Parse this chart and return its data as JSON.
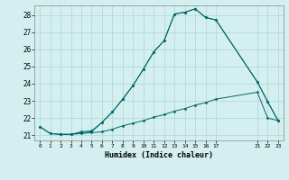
{
  "xlabel": "Humidex (Indice chaleur)",
  "background_color": "#d4efef",
  "grid_color": "#b8d8d8",
  "line_color": "#006868",
  "xlim": [
    -0.5,
    23.5
  ],
  "ylim": [
    20.7,
    28.55
  ],
  "xticks": [
    0,
    1,
    2,
    3,
    4,
    5,
    6,
    7,
    8,
    9,
    10,
    11,
    12,
    13,
    14,
    15,
    16,
    17,
    21,
    22,
    23
  ],
  "yticks": [
    21,
    22,
    23,
    24,
    25,
    26,
    27,
    28
  ],
  "line1_x": [
    0,
    1,
    2,
    3,
    4,
    5,
    6,
    7,
    8,
    9,
    10,
    11,
    12,
    13,
    14,
    15,
    16,
    17,
    21,
    22,
    23
  ],
  "line1_y": [
    21.5,
    21.1,
    21.05,
    21.05,
    21.1,
    21.15,
    21.2,
    21.35,
    21.55,
    21.7,
    21.85,
    22.05,
    22.2,
    22.4,
    22.55,
    22.75,
    22.9,
    23.1,
    23.5,
    22.0,
    21.85
  ],
  "line2_x": [
    2,
    3,
    4,
    5,
    6,
    7,
    8,
    9,
    10,
    11,
    12,
    13,
    14,
    15,
    16,
    17,
    21,
    22,
    23
  ],
  "line2_y": [
    21.05,
    21.05,
    21.2,
    21.25,
    21.75,
    22.35,
    23.1,
    23.9,
    24.85,
    25.85,
    26.5,
    28.05,
    28.15,
    28.35,
    27.85,
    27.7,
    24.1,
    22.95,
    21.85
  ],
  "line3_x": [
    0,
    1,
    2,
    3,
    4,
    5,
    6,
    7,
    8,
    9,
    10,
    11,
    12,
    13,
    14,
    15,
    16,
    17,
    21,
    22,
    23
  ],
  "line3_y": [
    21.5,
    21.1,
    21.05,
    21.05,
    21.15,
    21.2,
    21.75,
    22.35,
    23.1,
    23.9,
    24.85,
    25.85,
    26.5,
    28.05,
    28.15,
    28.35,
    27.85,
    27.7,
    24.1,
    22.95,
    21.85
  ]
}
